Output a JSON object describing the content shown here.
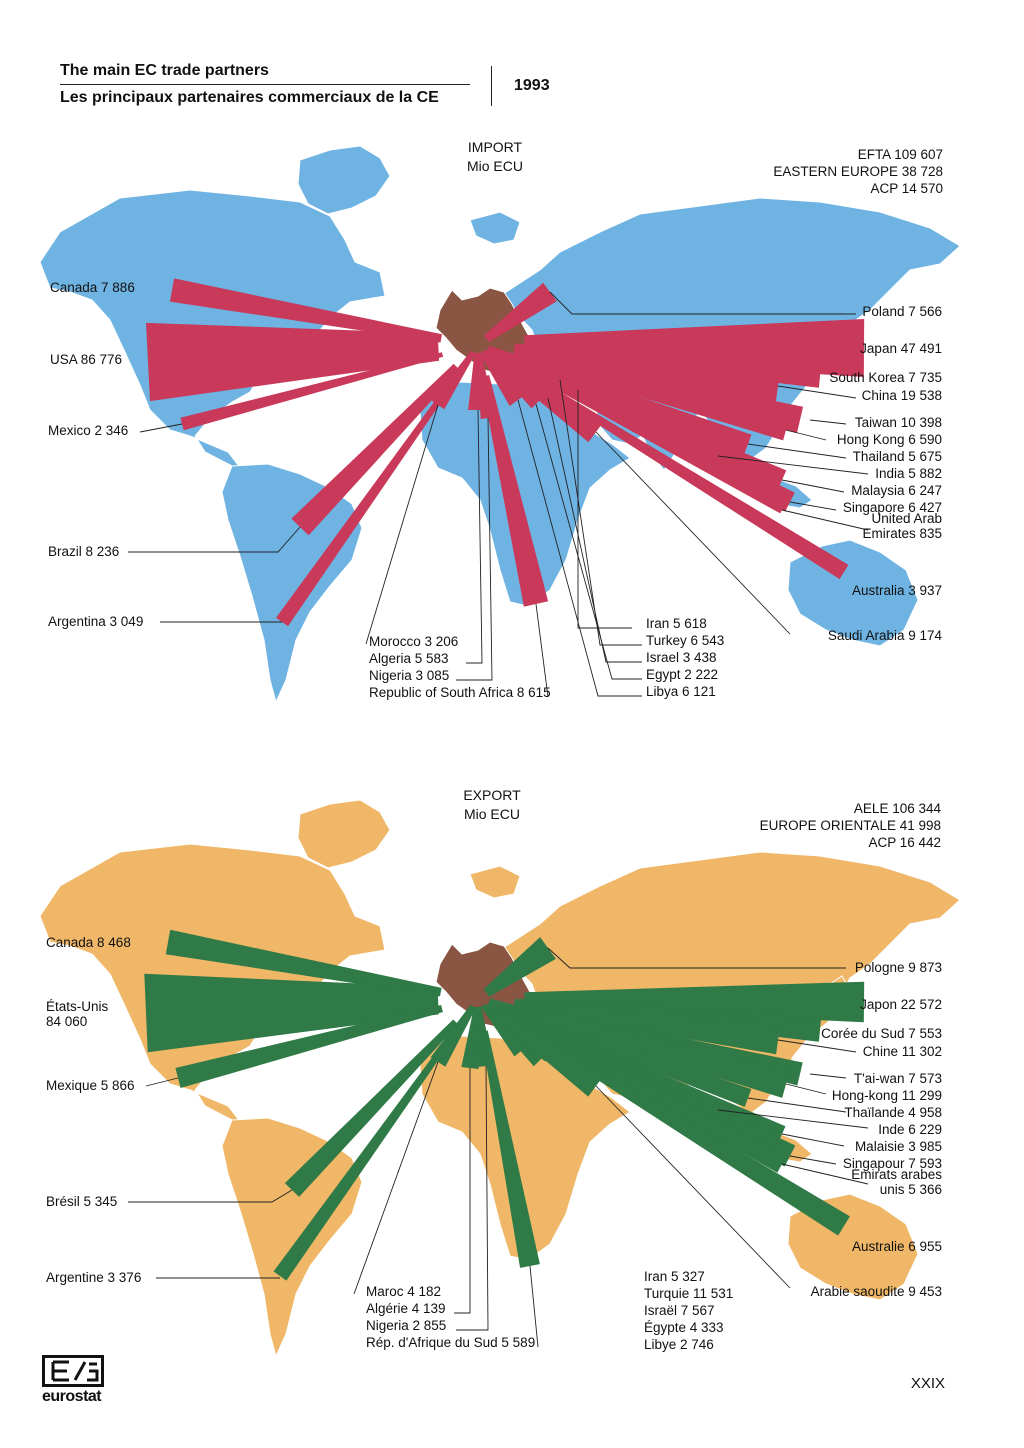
{
  "header": {
    "title_en": "The main EC trade partners",
    "title_fr": "Les principaux partenaires commerciaux de la CE",
    "year": "1993"
  },
  "footer": {
    "logo_text": "eurostat",
    "page_number": "XXIX"
  },
  "colors": {
    "import_land": "#6fb3e3",
    "import_bar": "#c9395a",
    "export_land": "#efb767",
    "export_bar": "#2f7a46",
    "eu": "#8a5542"
  },
  "chart_data": [
    {
      "type": "map-flow",
      "header_line1": "IMPORT",
      "header_line2": "Mio ECU",
      "blocs": [
        "EFTA 109 607",
        "EASTERN EUROPE 38 728",
        "ACP 14 570"
      ],
      "partners": [
        {
          "label": "Canada 7 886",
          "name": "Canada",
          "value": 7886
        },
        {
          "label": "USA 86 776",
          "name": "USA",
          "value": 86776
        },
        {
          "label": "Mexico 2 346",
          "name": "Mexico",
          "value": 2346
        },
        {
          "label": "Brazil 8 236",
          "name": "Brazil",
          "value": 8236
        },
        {
          "label": "Argentina 3 049",
          "name": "Argentina",
          "value": 3049
        },
        {
          "label": "Morocco 3 206",
          "name": "Morocco",
          "value": 3206
        },
        {
          "label": "Algeria 5 583",
          "name": "Algeria",
          "value": 5583
        },
        {
          "label": "Nigeria 3 085",
          "name": "Nigeria",
          "value": 3085
        },
        {
          "label": "Republic of South Africa 8 615",
          "name": "Republic of South Africa",
          "value": 8615
        },
        {
          "label": "Iran 5 618",
          "name": "Iran",
          "value": 5618
        },
        {
          "label": "Turkey 6 543",
          "name": "Turkey",
          "value": 6543
        },
        {
          "label": "Israel 3 438",
          "name": "Israel",
          "value": 3438
        },
        {
          "label": "Egypt 2 222",
          "name": "Egypt",
          "value": 2222
        },
        {
          "label": "Libya 6 121",
          "name": "Libya",
          "value": 6121
        },
        {
          "label": "Poland 7 566",
          "name": "Poland",
          "value": 7566
        },
        {
          "label": "Japan 47 491",
          "name": "Japan",
          "value": 47491
        },
        {
          "label": "South Korea 7 735",
          "name": "South Korea",
          "value": 7735
        },
        {
          "label": "China 19 538",
          "name": "China",
          "value": 19538
        },
        {
          "label": "Taiwan 10 398",
          "name": "Taiwan",
          "value": 10398
        },
        {
          "label": "Hong Kong 6 590",
          "name": "Hong Kong",
          "value": 6590
        },
        {
          "label": "Thailand 5 675",
          "name": "Thailand",
          "value": 5675
        },
        {
          "label": "India 5 882",
          "name": "India",
          "value": 5882
        },
        {
          "label": "Malaysia 6 247",
          "name": "Malaysia",
          "value": 6247
        },
        {
          "label": "Singapore 6 427",
          "name": "Singapore",
          "value": 6427
        },
        {
          "label": [
            "United Arab",
            "Emirates 835"
          ],
          "name": "United Arab Emirates",
          "value": 835
        },
        {
          "label": "Australia 3 937",
          "name": "Australia",
          "value": 3937
        },
        {
          "label": "Saudi Arabia 9 174",
          "name": "Saudi Arabia",
          "value": 9174
        }
      ]
    },
    {
      "type": "map-flow",
      "header_line1": "EXPORT",
      "header_line2": "Mio ECU",
      "blocs": [
        "AELE 106 344",
        "EUROPE ORIENTALE 41 998",
        "ACP 16 442"
      ],
      "partners": [
        {
          "label": "Canada 8 468",
          "name": "Canada",
          "value": 8468
        },
        {
          "label": [
            "États-Unis",
            "84 060"
          ],
          "name": "États-Unis",
          "value": 84060
        },
        {
          "label": "Mexique 5 866",
          "name": "Mexique",
          "value": 5866
        },
        {
          "label": "Brésil 5 345",
          "name": "Brésil",
          "value": 5345
        },
        {
          "label": "Argentine 3 376",
          "name": "Argentine",
          "value": 3376
        },
        {
          "label": "Maroc 4 182",
          "name": "Maroc",
          "value": 4182
        },
        {
          "label": "Algérie 4 139",
          "name": "Algérie",
          "value": 4139
        },
        {
          "label": "Nigeria 2 855",
          "name": "Nigeria",
          "value": 2855
        },
        {
          "label": "Rép. d'Afrique du Sud 5 589",
          "name": "Rép. d'Afrique du Sud",
          "value": 5589
        },
        {
          "label": "Iran 5 327",
          "name": "Iran",
          "value": 5327
        },
        {
          "label": "Turquie 11 531",
          "name": "Turquie",
          "value": 11531
        },
        {
          "label": "Israël 7 567",
          "name": "Israël",
          "value": 7567
        },
        {
          "label": "Égypte 4 333",
          "name": "Égypte",
          "value": 4333
        },
        {
          "label": "Libye 2 746",
          "name": "Libye",
          "value": 2746
        },
        {
          "label": "Pologne 9 873",
          "name": "Pologne",
          "value": 9873
        },
        {
          "label": "Japon 22 572",
          "name": "Japon",
          "value": 22572
        },
        {
          "label": "Corée du Sud 7 553",
          "name": "Corée du Sud",
          "value": 7553
        },
        {
          "label": "Chine 11 302",
          "name": "Chine",
          "value": 11302
        },
        {
          "label": "T'ai-wan 7 573",
          "name": "T'ai-wan",
          "value": 7573
        },
        {
          "label": "Hong-kong 11 299",
          "name": "Hong-kong",
          "value": 11299
        },
        {
          "label": "Thaïlande 4 958",
          "name": "Thaïlande",
          "value": 4958
        },
        {
          "label": "Inde 6 229",
          "name": "Inde",
          "value": 6229
        },
        {
          "label": "Malaisie 3 985",
          "name": "Malaisie",
          "value": 3985
        },
        {
          "label": "Singapour 7 593",
          "name": "Singapour",
          "value": 7593
        },
        {
          "label": [
            "Émirats arabes",
            "unis 5 366"
          ],
          "name": "Émirats arabes unis",
          "value": 5366
        },
        {
          "label": "Australie 6 955",
          "name": "Australie",
          "value": 6955
        },
        {
          "label": "Arabie saoudite 9 453",
          "name": "Arabie saoudite",
          "value": 9453
        }
      ]
    }
  ]
}
